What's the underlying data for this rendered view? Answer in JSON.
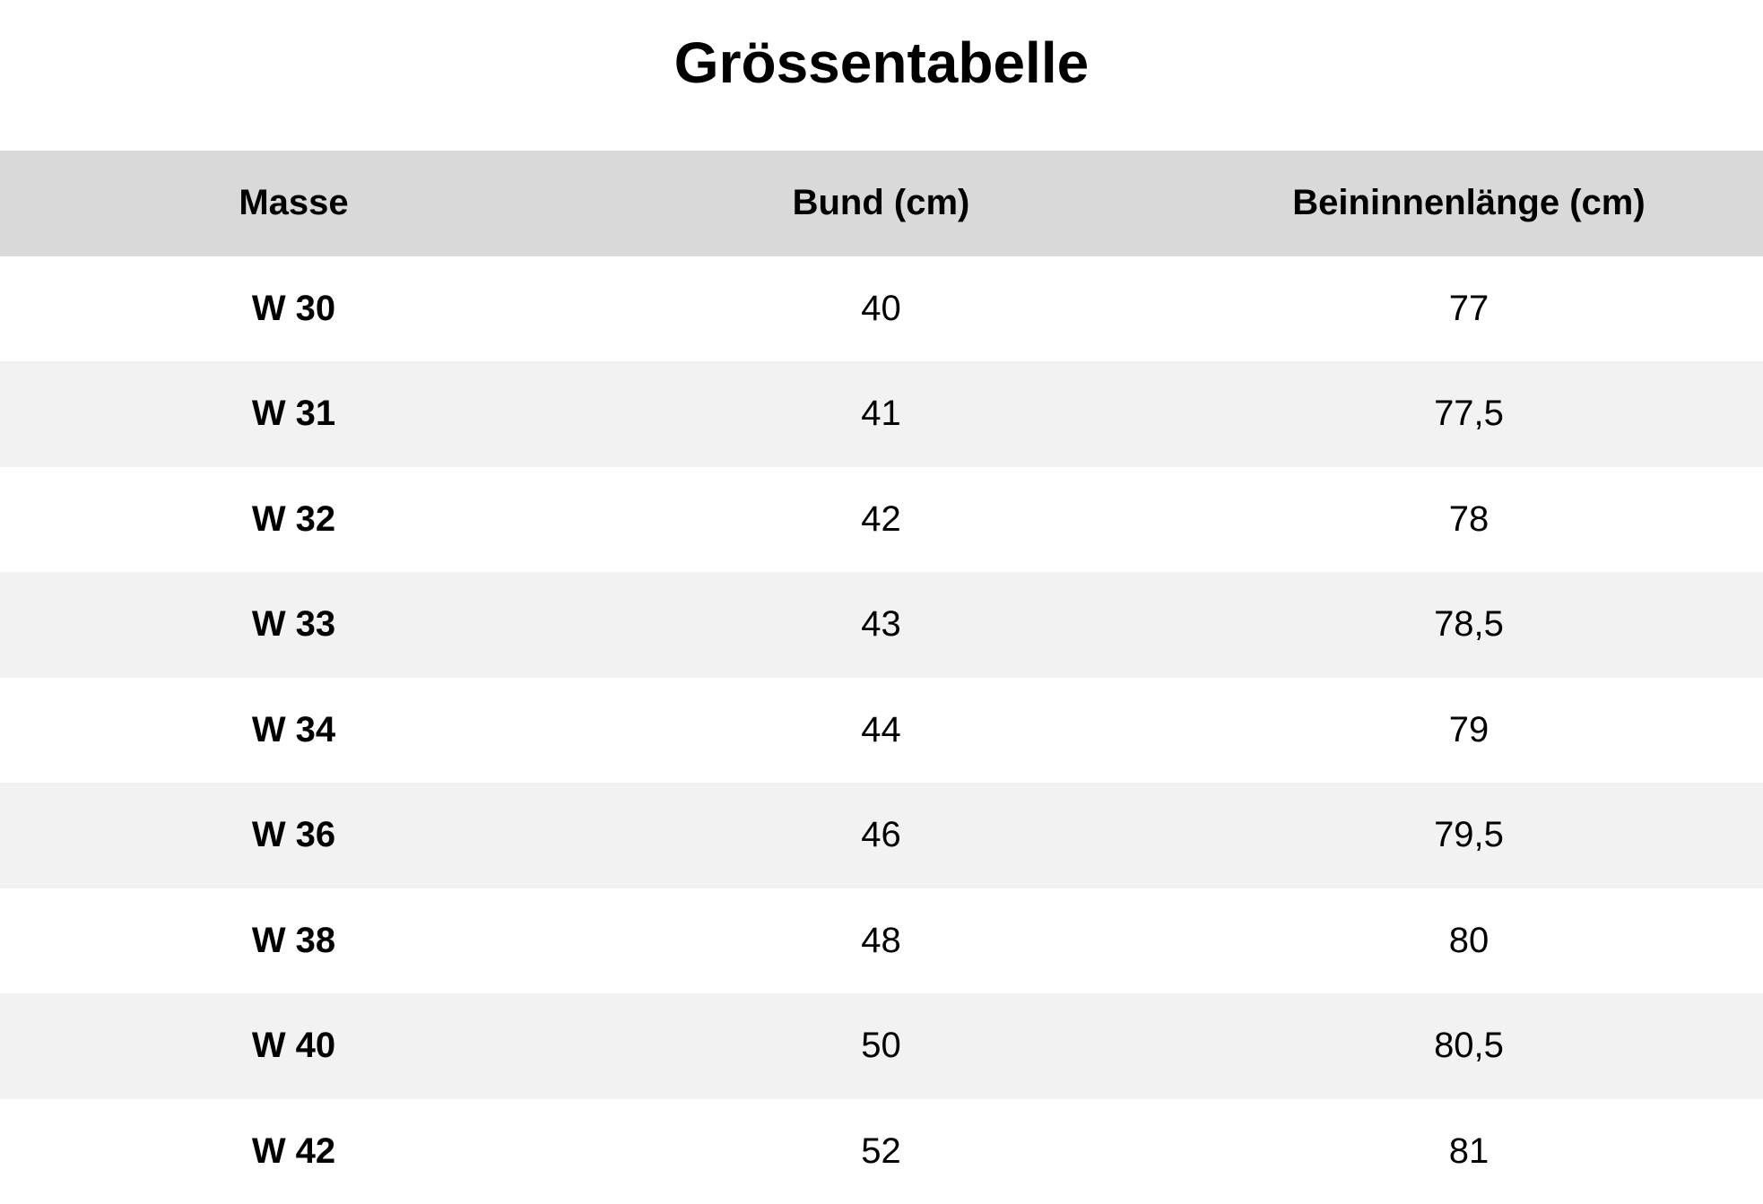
{
  "title": "Grössentabelle",
  "table": {
    "headers": [
      "Masse",
      "Bund (cm)",
      "Beininnenlänge (cm)"
    ],
    "rows": [
      [
        "W 30",
        "40",
        "77"
      ],
      [
        "W 31",
        "41",
        "77,5"
      ],
      [
        "W 32",
        "42",
        "78"
      ],
      [
        "W 33",
        "43",
        "78,5"
      ],
      [
        "W 34",
        "44",
        "79"
      ],
      [
        "W 36",
        "46",
        "79,5"
      ],
      [
        "W 38",
        "48",
        "80"
      ],
      [
        "W 40",
        "50",
        "80,5"
      ],
      [
        "W 42",
        "52",
        "81"
      ]
    ]
  },
  "colors": {
    "header_background": "#d9d9d9",
    "row_background_alternate": "#f2f2f2",
    "row_background": "#ffffff",
    "text": "#000000"
  }
}
